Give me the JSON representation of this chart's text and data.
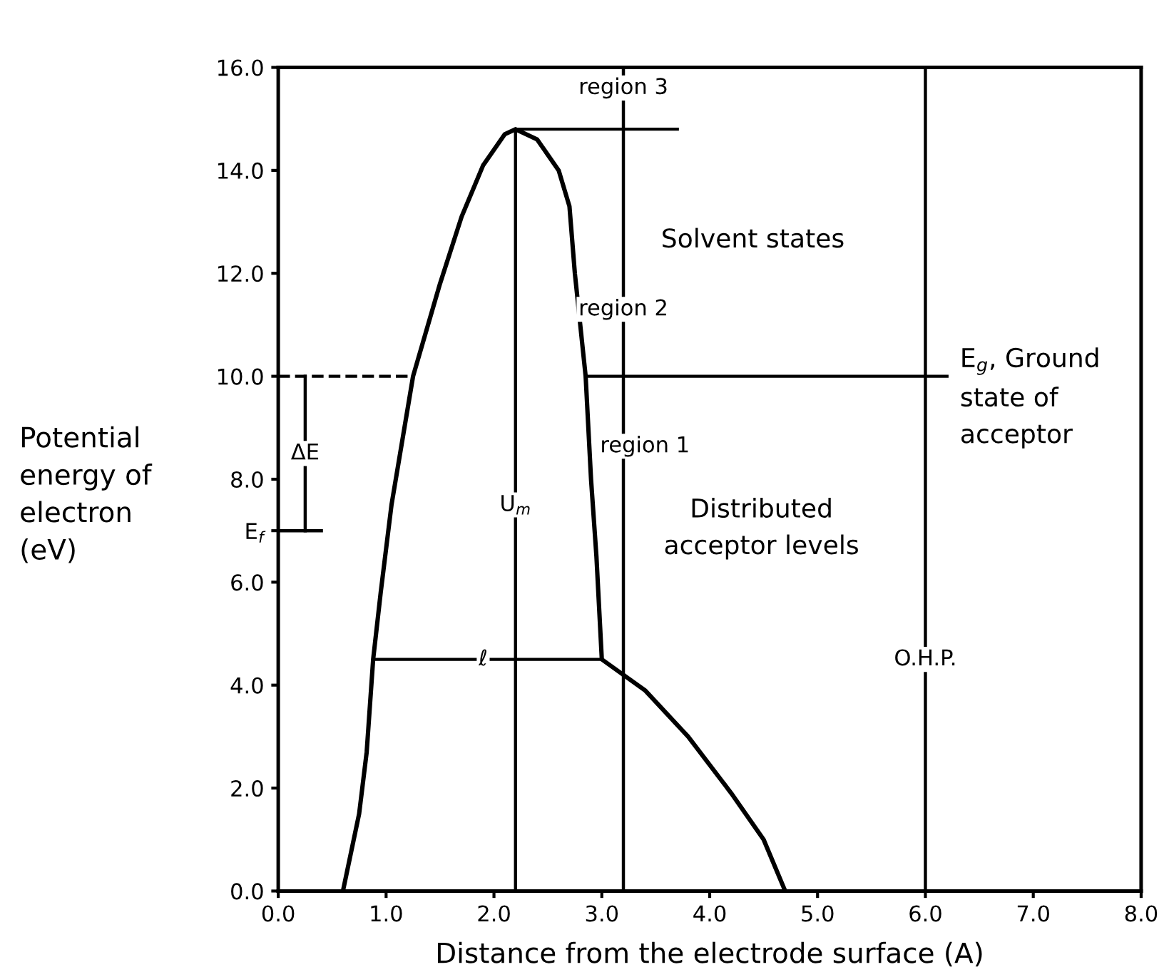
{
  "chart_data": {
    "type": "line",
    "xlabel": "Distance from the electrode surface (A)",
    "ylabel": "Potential\nenergy of\nelectron\n(eV)",
    "xlim": [
      0,
      8
    ],
    "ylim": [
      0,
      16
    ],
    "xticks": [
      {
        "value": 0,
        "label": "0.0"
      },
      {
        "value": 1,
        "label": "1.0"
      },
      {
        "value": 2,
        "label": "2.0"
      },
      {
        "value": 3,
        "label": "3.0"
      },
      {
        "value": 4,
        "label": "4.0"
      },
      {
        "value": 5,
        "label": "5.0"
      },
      {
        "value": 6,
        "label": "6.0"
      },
      {
        "value": 7,
        "label": "7.0"
      },
      {
        "value": 8,
        "label": "8.0"
      }
    ],
    "yticks": [
      {
        "value": 0,
        "label": "0.0"
      },
      {
        "value": 2,
        "label": "2.0"
      },
      {
        "value": 4,
        "label": "4.0"
      },
      {
        "value": 6,
        "label": "6.0"
      },
      {
        "value": 7,
        "label": "E$_{f}$"
      },
      {
        "value": 8,
        "label": "8.0"
      },
      {
        "value": 10,
        "label": "10.0"
      },
      {
        "value": 12,
        "label": "12.0"
      },
      {
        "value": 14,
        "label": "14.0"
      },
      {
        "value": 16,
        "label": "16.0"
      }
    ],
    "grid": false,
    "legend": false,
    "series": [
      {
        "color": "#000000",
        "x": [
          0.6,
          0.75,
          0.82,
          0.88,
          0.95,
          1.05,
          1.25,
          1.5,
          1.7,
          1.9,
          2.1,
          2.2,
          2.4,
          2.6,
          2.7,
          2.75,
          2.85,
          2.9,
          2.95,
          3.0,
          3.4,
          3.8,
          4.2,
          4.5,
          4.7
        ],
        "values": [
          0,
          1.5,
          2.7,
          4.5,
          5.8,
          7.5,
          10,
          11.8,
          13.1,
          14.1,
          14.7,
          14.8,
          14.6,
          14.0,
          13.3,
          12.0,
          10,
          8,
          6.5,
          4.5,
          3.9,
          3.0,
          1.9,
          1.0,
          0
        ]
      },
      {
        "color": "#000000",
        "x": [
          2.2,
          2.2
        ],
        "values": [
          0,
          14.8
        ]
      },
      {
        "color": "#000000",
        "x": [
          2.2,
          3.7
        ],
        "values": [
          14.8,
          14.8
        ]
      },
      {
        "color": "#000000",
        "x": [
          0,
          1.25
        ],
        "values": [
          10,
          10
        ],
        "line_style": "dashed"
      },
      {
        "color": "#000000",
        "x": [
          2.85,
          6.2
        ],
        "values": [
          10,
          10
        ]
      },
      {
        "color": "#000000",
        "x": [
          0,
          0.4
        ],
        "values": [
          7,
          7
        ]
      },
      {
        "color": "#000000",
        "x": [
          3.2,
          3.2
        ],
        "values": [
          0,
          16
        ]
      },
      {
        "color": "#000000",
        "x": [
          0.25,
          0.25
        ],
        "values": [
          7,
          10
        ]
      },
      {
        "color": "#000000",
        "x": [
          0.88,
          3.0
        ],
        "values": [
          4.5,
          4.5
        ]
      }
    ],
    "ref_lines": [
      {
        "axis": "x",
        "value": 6.0,
        "color": "#000000"
      }
    ],
    "annotations": [
      {
        "text": "region 3",
        "x": 3.2,
        "y": 15.6
      },
      {
        "text": "region 2",
        "x": 3.2,
        "y": 11.3
      },
      "region 1",
      "Solvent states",
      "Distributed\nacceptor levels",
      {
        "text": "U$_{m}$",
        "x": 2.2,
        "y": 7.5
      },
      {
        "text": "ℓ",
        "x": 1.9,
        "y": 4.5
      },
      {
        "text": "ΔE",
        "x": 0.25,
        "y": 8.5
      },
      "E$_{g}$, Ground\nstate of\nacceptor",
      {
        "text": "O.H.P.",
        "x": 6.0,
        "y": 4.5
      }
    ]
  }
}
